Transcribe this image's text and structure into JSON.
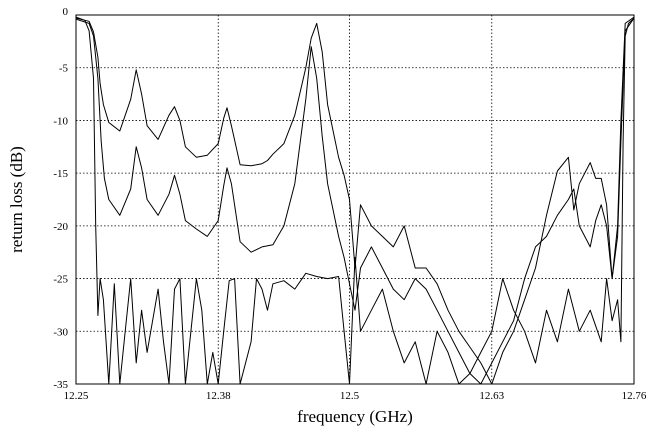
{
  "chart_data": {
    "type": "line",
    "title": "",
    "xlabel": "frequency (GHz)",
    "ylabel": "return loss (dB)",
    "xlim": [
      12.25,
      12.76
    ],
    "ylim": [
      -35,
      0
    ],
    "x_ticks": [
      12.25,
      12.38,
      12.5,
      12.63,
      12.76
    ],
    "x_tick_labels": [
      "12.25",
      "12.38",
      "12.5",
      "12.63",
      "12.76"
    ],
    "y_ticks": [
      0,
      -5,
      -10,
      -15,
      -20,
      -25,
      -30,
      -35
    ],
    "y_tick_labels": [
      "0",
      "-5",
      "-10",
      "-15",
      "-20",
      "-25",
      "-30",
      "-35"
    ],
    "grid": true,
    "legend": "none",
    "series": [
      {
        "x": [
          12.25,
          12.262,
          12.266,
          12.27,
          12.272,
          12.275,
          12.28,
          12.29,
          12.3,
          12.305,
          12.31,
          12.315,
          12.325,
          12.335,
          12.34,
          12.345,
          12.35,
          12.36,
          12.37,
          12.38,
          12.385,
          12.388,
          12.392,
          12.4,
          12.41,
          12.42,
          12.425,
          12.43,
          12.44,
          12.45,
          12.46,
          12.465,
          12.47,
          12.475,
          12.48,
          12.49,
          12.495,
          12.5,
          12.505,
          12.51,
          12.52,
          12.53,
          12.54,
          12.55,
          12.56,
          12.57,
          12.58,
          12.59,
          12.6,
          12.61,
          12.62,
          12.63,
          12.64,
          12.65,
          12.66,
          12.67,
          12.68,
          12.69,
          12.7,
          12.705,
          12.71,
          12.72,
          12.725,
          12.73,
          12.735,
          12.74,
          12.745,
          12.748,
          12.752,
          12.76
        ],
        "y": [
          -0.3,
          -0.6,
          -1.6,
          -4,
          -6.5,
          -8.5,
          -10.2,
          -11,
          -8,
          -5.2,
          -7.5,
          -10.5,
          -11.8,
          -9.5,
          -8.7,
          -10,
          -12.5,
          -13.5,
          -13.3,
          -12.2,
          -9.8,
          -8.8,
          -10.5,
          -14.2,
          -14.3,
          -14.1,
          -13.8,
          -13.2,
          -12.2,
          -9.5,
          -5,
          -2.2,
          -0.8,
          -3.5,
          -8.5,
          -13.5,
          -15.2,
          -17.5,
          -24,
          -18,
          -20,
          -21,
          -22,
          -20,
          -24,
          -24,
          -25.5,
          -28,
          -30,
          -31.5,
          -33,
          -35,
          -32,
          -30,
          -27,
          -24,
          -19,
          -14.8,
          -13.5,
          -18.5,
          -16,
          -14,
          -15.5,
          -15.5,
          -18,
          -25,
          -20,
          -10,
          -0.8,
          -0.2
        ]
      },
      {
        "x": [
          12.25,
          12.262,
          12.266,
          12.27,
          12.273,
          12.276,
          12.28,
          12.29,
          12.3,
          12.305,
          12.31,
          12.315,
          12.325,
          12.335,
          12.34,
          12.345,
          12.35,
          12.36,
          12.37,
          12.38,
          12.385,
          12.388,
          12.392,
          12.4,
          12.41,
          12.42,
          12.43,
          12.44,
          12.45,
          12.46,
          12.465,
          12.47,
          12.475,
          12.48,
          12.49,
          12.495,
          12.5,
          12.505,
          12.51,
          12.52,
          12.53,
          12.54,
          12.55,
          12.56,
          12.57,
          12.58,
          12.59,
          12.6,
          12.61,
          12.62,
          12.63,
          12.64,
          12.65,
          12.66,
          12.67,
          12.68,
          12.69,
          12.7,
          12.705,
          12.71,
          12.72,
          12.725,
          12.73,
          12.735,
          12.74,
          12.745,
          12.748,
          12.752,
          12.76
        ],
        "y": [
          -0.4,
          -0.8,
          -2,
          -6,
          -12,
          -15.5,
          -17.5,
          -19,
          -16.5,
          -12.5,
          -14.5,
          -17.5,
          -19,
          -17,
          -15.2,
          -17,
          -19.5,
          -20.3,
          -21,
          -19.5,
          -16.2,
          -14.5,
          -16,
          -21.5,
          -22.5,
          -22,
          -21.8,
          -20,
          -16,
          -8,
          -3,
          -6,
          -11.5,
          -16,
          -21,
          -23,
          -25.5,
          -28,
          -24,
          -22,
          -24,
          -26,
          -27,
          -25,
          -26,
          -28,
          -30,
          -32,
          -34,
          -35,
          -33,
          -31,
          -29,
          -25,
          -22,
          -21,
          -19,
          -17.5,
          -16.5,
          -20,
          -22,
          -19.5,
          -18,
          -20,
          -25,
          -21,
          -12,
          -1.5,
          -0.3
        ]
      },
      {
        "x": [
          12.25,
          12.258,
          12.262,
          12.266,
          12.268,
          12.27,
          12.272,
          12.275,
          12.28,
          12.285,
          12.29,
          12.295,
          12.3,
          12.305,
          12.31,
          12.315,
          12.32,
          12.325,
          12.33,
          12.335,
          12.34,
          12.345,
          12.35,
          12.355,
          12.36,
          12.365,
          12.37,
          12.375,
          12.38,
          12.385,
          12.39,
          12.395,
          12.4,
          12.41,
          12.415,
          12.42,
          12.425,
          12.43,
          12.44,
          12.45,
          12.46,
          12.47,
          12.48,
          12.49,
          12.495,
          12.5,
          12.505,
          12.51,
          12.52,
          12.53,
          12.54,
          12.55,
          12.56,
          12.57,
          12.58,
          12.59,
          12.6,
          12.61,
          12.62,
          12.63,
          12.64,
          12.65,
          12.66,
          12.67,
          12.68,
          12.69,
          12.7,
          12.71,
          12.72,
          12.73,
          12.735,
          12.74,
          12.745,
          12.748,
          12.75,
          12.752,
          12.755,
          12.76
        ],
        "y": [
          -0.2,
          -0.5,
          -1.5,
          -6,
          -20,
          -28.5,
          -25,
          -27,
          -35,
          -25.5,
          -35,
          -30,
          -25,
          -33,
          -28,
          -32,
          -29,
          -26,
          -31,
          -35,
          -26,
          -25,
          -35,
          -30,
          -25,
          -28,
          -35,
          -32,
          -35,
          -30,
          -25.2,
          -25,
          -35,
          -31,
          -25,
          -26,
          -28,
          -25.5,
          -25.2,
          -26,
          -24.5,
          -24.8,
          -25,
          -24.8,
          -30,
          -35,
          -23,
          -30,
          -28,
          -26,
          -30,
          -33,
          -31,
          -35,
          -30,
          -32,
          -35,
          -34,
          -32,
          -30,
          -25,
          -28,
          -30,
          -33,
          -28,
          -31,
          -26,
          -30,
          -28,
          -31,
          -25,
          -29,
          -27,
          -31,
          -12,
          -2,
          -0.8,
          -0.3
        ]
      }
    ]
  }
}
